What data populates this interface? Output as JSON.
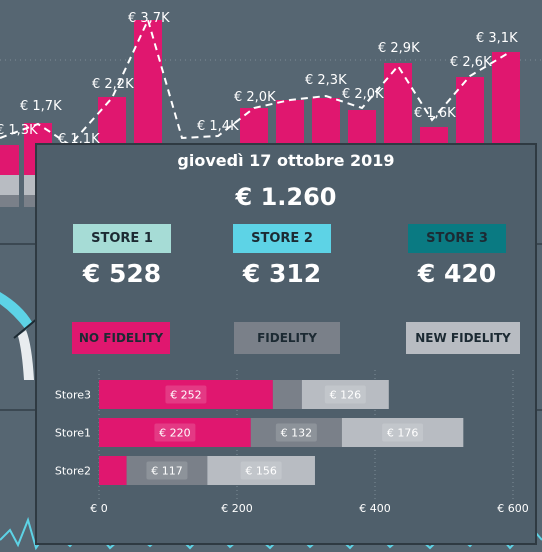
{
  "colors": {
    "background": "#566672",
    "tooltip_bg": "#4f5f6b",
    "no_fidelity": "#e0176f",
    "fidelity": "#7a8089",
    "new_fidelity": "#b8bcc2",
    "store1": "#a6dcd6",
    "store2": "#5dd3e6",
    "store3": "#0a7a82"
  },
  "background_chart": {
    "bar_labels": [
      "€ 1,3K",
      "€ 1,7K",
      "€ 1,1K",
      "€ 2,2K",
      "€ 3,7K",
      "€ 1,4K",
      "€ 2,0K",
      "€ 2,3K",
      "€ 2,0K",
      "€ 2,9K",
      "€ 1,6K",
      "€ 2,6K",
      "€ 3,1K"
    ]
  },
  "tooltip": {
    "date": "giovedì 17 ottobre 2019",
    "total": "€ 1.260",
    "stores": [
      {
        "label": "STORE 1",
        "value": "€ 528"
      },
      {
        "label": "STORE 2",
        "value": "€ 312"
      },
      {
        "label": "STORE 3",
        "value": "€ 420"
      }
    ],
    "legend": {
      "no_fidelity": "NO FIDELITY",
      "fidelity": "FIDELITY",
      "new_fidelity": "NEW FIDELITY"
    }
  },
  "chart_data": {
    "type": "bar",
    "orientation": "horizontal",
    "stacked": true,
    "categories": [
      "Store3",
      "Store1",
      "Store2"
    ],
    "series": [
      {
        "name": "NO FIDELITY",
        "values": [
          252,
          220,
          40
        ],
        "labels": [
          "€ 252",
          "€ 220",
          ""
        ]
      },
      {
        "name": "FIDELITY",
        "values": [
          42,
          132,
          117
        ],
        "labels": [
          "",
          "€ 132",
          "€ 117"
        ]
      },
      {
        "name": "NEW FIDELITY",
        "values": [
          126,
          176,
          156
        ],
        "labels": [
          "€ 126",
          "€ 176",
          "€ 156"
        ]
      }
    ],
    "x_ticks": [
      "€ 0",
      "€ 200",
      "€ 400",
      "€ 600"
    ],
    "xlim": [
      0,
      600
    ],
    "grid": true
  }
}
